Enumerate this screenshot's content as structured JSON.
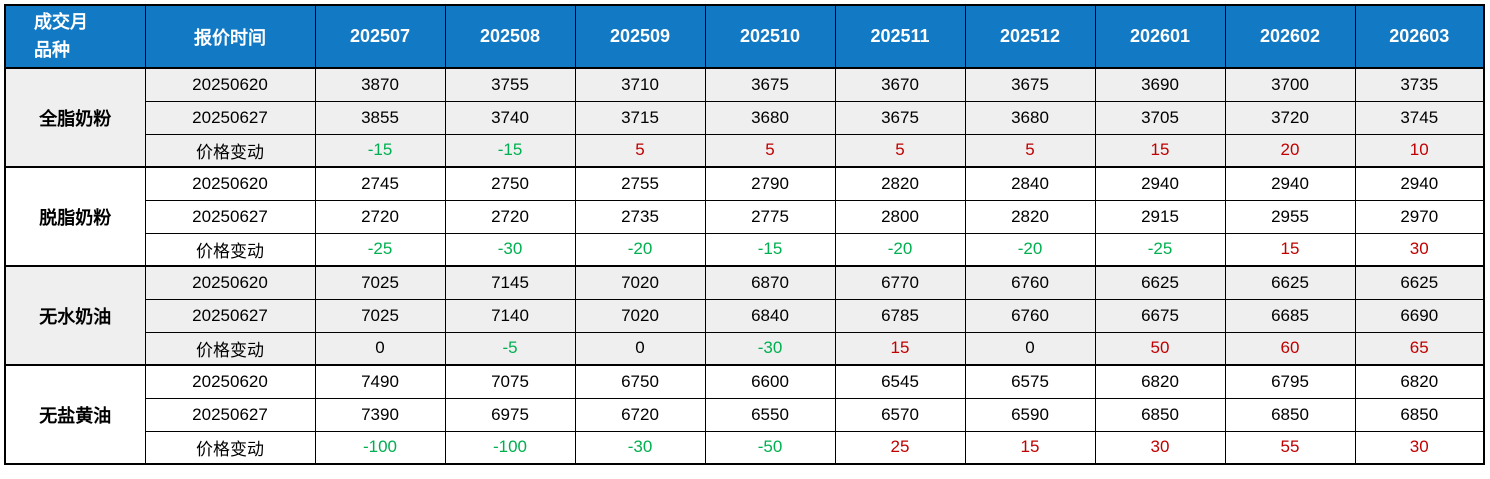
{
  "colors": {
    "header_bg": "#1279C4",
    "header_text": "#FFFFFF",
    "positive_change": "#C00000",
    "negative_change": "#00B050",
    "zero_change": "#000000",
    "group_shade": "#EFEFEF",
    "group_plain": "#FFFFFF",
    "grid_border": "#000000"
  },
  "chart_data": {
    "type": "table",
    "corner_header_line1": "成交月",
    "corner_header_line2": "品种",
    "row_header_label": "报价时间",
    "columns": [
      "202507",
      "202508",
      "202509",
      "202510",
      "202511",
      "202512",
      "202601",
      "202602",
      "202603"
    ],
    "groups": [
      {
        "product": "全脂奶粉",
        "rows": [
          {
            "label": "20250620",
            "kind": "price",
            "values": [
              3870,
              3755,
              3710,
              3675,
              3670,
              3675,
              3690,
              3700,
              3735
            ]
          },
          {
            "label": "20250627",
            "kind": "price",
            "values": [
              3855,
              3740,
              3715,
              3680,
              3675,
              3680,
              3705,
              3720,
              3745
            ]
          },
          {
            "label": "价格变动",
            "kind": "change",
            "values": [
              -15,
              -15,
              5,
              5,
              5,
              5,
              15,
              20,
              10
            ]
          }
        ]
      },
      {
        "product": "脱脂奶粉",
        "rows": [
          {
            "label": "20250620",
            "kind": "price",
            "values": [
              2745,
              2750,
              2755,
              2790,
              2820,
              2840,
              2940,
              2940,
              2940
            ]
          },
          {
            "label": "20250627",
            "kind": "price",
            "values": [
              2720,
              2720,
              2735,
              2775,
              2800,
              2820,
              2915,
              2955,
              2970
            ]
          },
          {
            "label": "价格变动",
            "kind": "change",
            "values": [
              -25,
              -30,
              -20,
              -15,
              -20,
              -20,
              -25,
              15,
              30
            ]
          }
        ]
      },
      {
        "product": "无水奶油",
        "rows": [
          {
            "label": "20250620",
            "kind": "price",
            "values": [
              7025,
              7145,
              7020,
              6870,
              6770,
              6760,
              6625,
              6625,
              6625
            ]
          },
          {
            "label": "20250627",
            "kind": "price",
            "values": [
              7025,
              7140,
              7020,
              6840,
              6785,
              6760,
              6675,
              6685,
              6690
            ]
          },
          {
            "label": "价格变动",
            "kind": "change",
            "values": [
              0,
              -5,
              0,
              -30,
              15,
              0,
              50,
              60,
              65
            ]
          }
        ]
      },
      {
        "product": "无盐黄油",
        "rows": [
          {
            "label": "20250620",
            "kind": "price",
            "values": [
              7490,
              7075,
              6750,
              6600,
              6545,
              6575,
              6820,
              6795,
              6820
            ]
          },
          {
            "label": "20250627",
            "kind": "price",
            "values": [
              7390,
              6975,
              6720,
              6550,
              6570,
              6590,
              6850,
              6850,
              6850
            ]
          },
          {
            "label": "价格变动",
            "kind": "change",
            "values": [
              -100,
              -100,
              -30,
              -50,
              25,
              15,
              30,
              55,
              30
            ]
          }
        ]
      }
    ]
  }
}
